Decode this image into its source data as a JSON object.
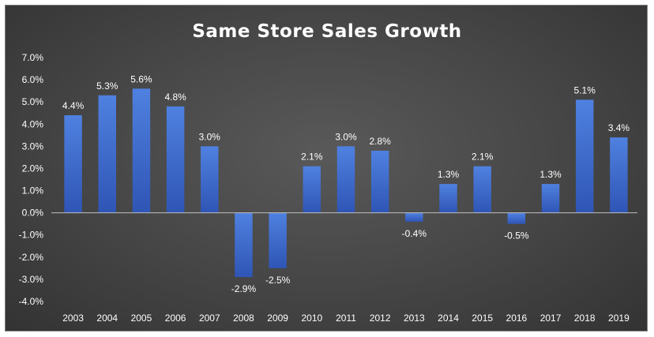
{
  "chart_data": {
    "type": "bar",
    "title": "Same Store Sales Growth",
    "xlabel": "",
    "ylabel": "",
    "categories": [
      "2003",
      "2004",
      "2005",
      "2006",
      "2007",
      "2008",
      "2009",
      "2010",
      "2011",
      "2012",
      "2013",
      "2014",
      "2015",
      "2016",
      "2017",
      "2018",
      "2019"
    ],
    "values": [
      4.4,
      5.3,
      5.6,
      4.8,
      3.0,
      -2.9,
      -2.5,
      2.1,
      3.0,
      2.8,
      -0.4,
      1.3,
      2.1,
      -0.5,
      1.3,
      5.1,
      3.4
    ],
    "data_labels": [
      "4.4%",
      "5.3%",
      "5.6%",
      "4.8%",
      "3.0%",
      "-2.9%",
      "-2.5%",
      "2.1%",
      "3.0%",
      "2.8%",
      "-0.4%",
      "1.3%",
      "2.1%",
      "-0.5%",
      "1.3%",
      "5.1%",
      "3.4%"
    ],
    "y_ticks": [
      7,
      6,
      5,
      4,
      3,
      2,
      1,
      0,
      -1,
      -2,
      -3,
      -4
    ],
    "y_tick_labels": [
      "7.0%",
      "6.0%",
      "5.0%",
      "4.0%",
      "3.0%",
      "2.0%",
      "1.0%",
      "0.0%",
      "-1.0%",
      "-2.0%",
      "-3.0%",
      "-4.0%"
    ],
    "ylim": [
      -4,
      7
    ],
    "grid": false,
    "legend": "none",
    "colors": {
      "bar_top": "#4f81e0",
      "bar_bottom": "#2f55b5",
      "background": "#454545",
      "text": "#ffffff",
      "zero_line": "#bfbfbf"
    }
  }
}
